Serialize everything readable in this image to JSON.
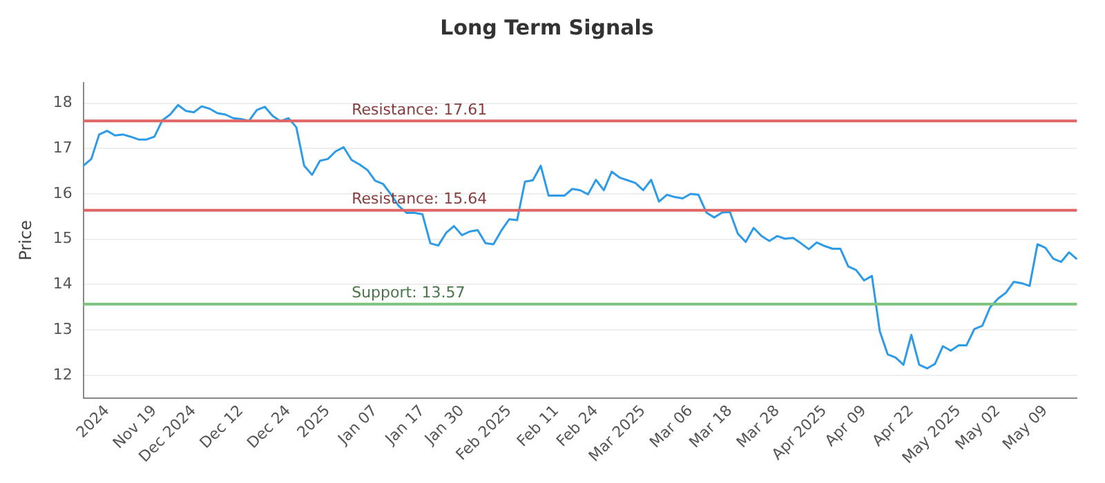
{
  "chart_data": {
    "type": "line",
    "title": "Long Term Signals",
    "ylabel": "Price",
    "categories": [
      null,
      null,
      null,
      "2024",
      null,
      null,
      null,
      null,
      null,
      "Nov 19",
      null,
      null,
      null,
      null,
      "Dec 2024",
      null,
      null,
      null,
      null,
      null,
      "Dec 12",
      null,
      null,
      null,
      null,
      null,
      "Dec 24",
      null,
      null,
      null,
      null,
      "2025",
      null,
      null,
      null,
      null,
      null,
      "Jan 07",
      null,
      null,
      null,
      null,
      null,
      "Jan 17",
      null,
      null,
      null,
      null,
      "Jan 30",
      null,
      null,
      null,
      null,
      null,
      "Feb 2025",
      null,
      null,
      null,
      null,
      null,
      "Feb 11",
      null,
      null,
      null,
      null,
      "Feb 24",
      null,
      null,
      null,
      null,
      null,
      "Mar 2025",
      null,
      null,
      null,
      null,
      null,
      "Mar 06",
      null,
      null,
      null,
      null,
      "Mar 18",
      null,
      null,
      null,
      null,
      null,
      "Mar 28",
      null,
      null,
      null,
      null,
      null,
      "Apr 2025",
      null,
      null,
      null,
      null,
      "Apr 09",
      null,
      null,
      null,
      null,
      null,
      "Apr 22",
      null,
      null,
      null,
      null,
      null,
      "May 2025",
      null,
      null,
      null,
      null,
      "May 02",
      null,
      null,
      null,
      null,
      null,
      "May 09",
      null,
      null,
      null,
      null
    ],
    "series": [
      {
        "color": "#2e9be6",
        "values": [
          16.62,
          16.77,
          17.31,
          17.39,
          17.29,
          17.31,
          17.26,
          17.2,
          17.2,
          17.26,
          17.62,
          17.75,
          17.96,
          17.83,
          17.8,
          17.93,
          17.88,
          17.78,
          17.75,
          17.67,
          17.65,
          17.61,
          17.85,
          17.92,
          17.72,
          17.6,
          17.67,
          17.47,
          16.62,
          16.42,
          16.73,
          16.77,
          16.94,
          17.03,
          16.75,
          16.65,
          16.53,
          16.29,
          16.22,
          15.99,
          15.73,
          15.58,
          15.58,
          15.55,
          14.91,
          14.86,
          15.14,
          15.29,
          15.09,
          15.17,
          15.2,
          14.91,
          14.89,
          15.19,
          15.44,
          15.42,
          16.27,
          16.3,
          16.62,
          15.96,
          15.96,
          15.96,
          16.11,
          16.08,
          15.99,
          16.31,
          16.08,
          16.49,
          16.36,
          16.3,
          16.24,
          16.08,
          16.31,
          15.83,
          15.98,
          15.93,
          15.9,
          16.0,
          15.98,
          15.59,
          15.48,
          15.59,
          15.6,
          15.12,
          14.94,
          15.25,
          15.07,
          14.96,
          15.07,
          15.01,
          15.03,
          14.91,
          14.78,
          14.93,
          14.85,
          14.79,
          14.79,
          14.4,
          14.32,
          14.09,
          14.19,
          12.97,
          12.46,
          12.39,
          12.23,
          12.89,
          12.23,
          12.15,
          12.25,
          12.64,
          12.54,
          12.66,
          12.66,
          13.02,
          13.09,
          13.5,
          13.69,
          13.82,
          14.06,
          14.03,
          13.97,
          14.89,
          14.81,
          14.57,
          14.5,
          14.71,
          14.56
        ]
      }
    ],
    "ylim": [
      11.5,
      18.45
    ],
    "yticks": [
      12,
      13,
      14,
      15,
      16,
      17,
      18
    ],
    "grid": "y",
    "ref_lines": [
      {
        "axis": "y",
        "value": 17.61,
        "label": "Resistance: 17.61",
        "color": "#e06666"
      },
      {
        "axis": "y",
        "value": 15.64,
        "label": "Resistance: 15.64",
        "color": "#e06666"
      },
      {
        "axis": "y",
        "value": 13.57,
        "label": "Support: 13.57",
        "color": "#7cc47c"
      }
    ]
  }
}
